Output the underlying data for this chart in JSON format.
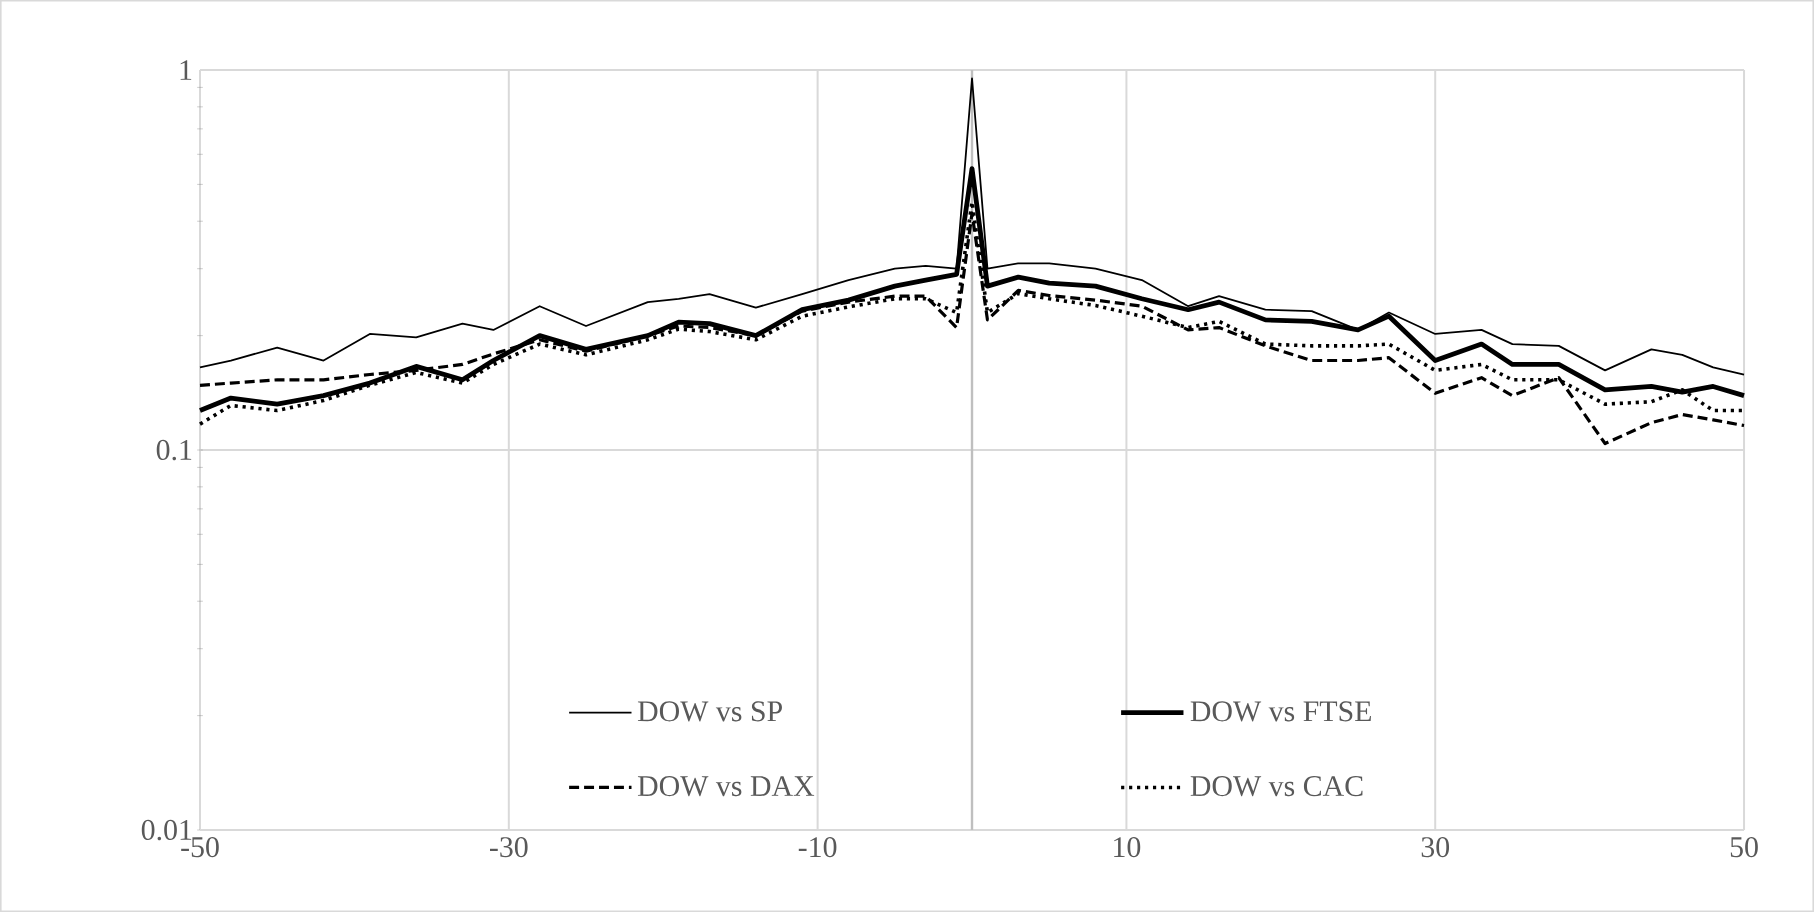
{
  "chart_data": {
    "type": "line",
    "x": [
      -50,
      -48,
      -45,
      -42,
      -39,
      -36,
      -33,
      -31,
      -28,
      -25,
      -21,
      -19,
      -17,
      -14,
      -11,
      -8,
      -5,
      -3,
      -1,
      0,
      1,
      3,
      5,
      8,
      11,
      14,
      16,
      19,
      22,
      25,
      27,
      30,
      33,
      35,
      38,
      41,
      44,
      46,
      48,
      50
    ],
    "series": [
      {
        "name": "DOW vs SP",
        "color": "#000000",
        "line_style": "solid",
        "values": [
          0.165,
          0.172,
          0.186,
          0.172,
          0.202,
          0.198,
          0.215,
          0.207,
          0.239,
          0.212,
          0.245,
          0.25,
          0.257,
          0.237,
          0.257,
          0.28,
          0.3,
          0.305,
          0.3,
          0.95,
          0.3,
          0.31,
          0.31,
          0.3,
          0.28,
          0.239,
          0.254,
          0.234,
          0.232,
          0.207,
          0.23,
          0.202,
          0.207,
          0.19,
          0.188,
          0.162,
          0.184,
          0.178,
          0.165,
          0.158
        ]
      },
      {
        "name": "DOW vs FTSE",
        "color": "#000000",
        "line_style": "solid",
        "values": [
          0.127,
          0.137,
          0.132,
          0.139,
          0.15,
          0.166,
          0.153,
          0.172,
          0.2,
          0.184,
          0.2,
          0.217,
          0.215,
          0.2,
          0.234,
          0.248,
          0.27,
          0.28,
          0.29,
          0.55,
          0.27,
          0.285,
          0.275,
          0.27,
          0.25,
          0.234,
          0.245,
          0.22,
          0.218,
          0.207,
          0.225,
          0.172,
          0.19,
          0.168,
          0.168,
          0.144,
          0.147,
          0.142,
          0.147,
          0.139
        ]
      },
      {
        "name": "DOW vs DAX",
        "color": "#000000",
        "line_style": "dashed",
        "values": [
          0.148,
          0.15,
          0.153,
          0.153,
          0.158,
          0.162,
          0.168,
          0.179,
          0.195,
          0.182,
          0.2,
          0.212,
          0.21,
          0.2,
          0.232,
          0.245,
          0.254,
          0.254,
          0.21,
          0.42,
          0.22,
          0.263,
          0.255,
          0.248,
          0.239,
          0.207,
          0.21,
          0.188,
          0.172,
          0.172,
          0.175,
          0.141,
          0.155,
          0.139,
          0.155,
          0.104,
          0.118,
          0.124,
          0.12,
          0.116
        ]
      },
      {
        "name": "DOW vs CAC",
        "color": "#000000",
        "line_style": "dotted",
        "values": [
          0.117,
          0.131,
          0.127,
          0.135,
          0.148,
          0.16,
          0.15,
          0.168,
          0.19,
          0.178,
          0.195,
          0.208,
          0.205,
          0.195,
          0.225,
          0.238,
          0.25,
          0.25,
          0.23,
          0.45,
          0.23,
          0.258,
          0.25,
          0.24,
          0.225,
          0.21,
          0.218,
          0.19,
          0.188,
          0.188,
          0.19,
          0.162,
          0.168,
          0.153,
          0.153,
          0.132,
          0.134,
          0.144,
          0.127,
          0.127
        ]
      }
    ],
    "xlim": [
      -50,
      50
    ],
    "xticks": [
      -50,
      -30,
      -10,
      10,
      30,
      50
    ],
    "ylim": [
      0.01,
      1
    ],
    "yticks": [
      0.01,
      0.1,
      1
    ],
    "log": "y",
    "grid": true,
    "legend": "bottom",
    "marker": "none",
    "ref_lines": [
      {
        "axis": "x",
        "value": 0,
        "color": "#bfbfbf"
      }
    ]
  }
}
